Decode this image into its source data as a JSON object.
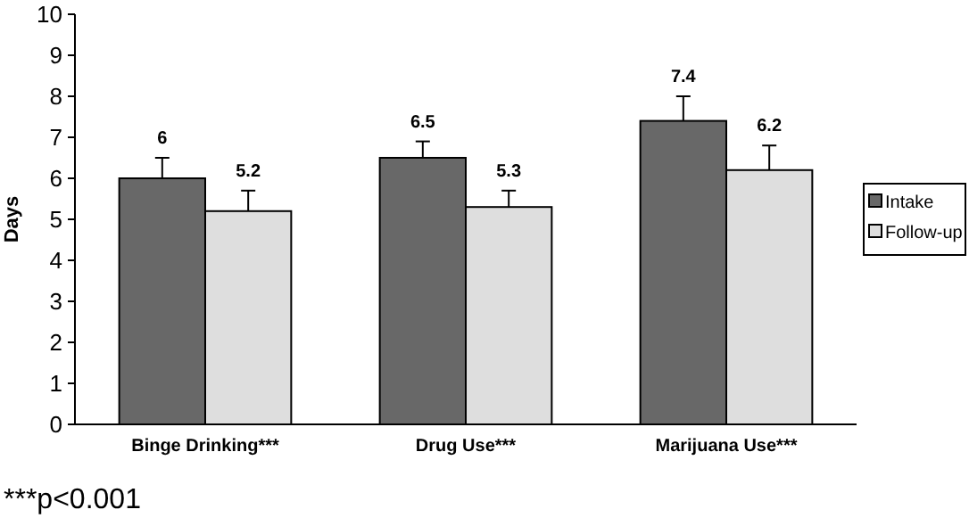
{
  "chart_data": {
    "type": "bar",
    "categories": [
      "Binge Drinking***",
      "Drug Use***",
      "Marijuana Use***"
    ],
    "series": [
      {
        "name": "Intake",
        "color": "#686868",
        "values": [
          6,
          6.5,
          7.4
        ],
        "errors": [
          [
            6,
            6.5
          ],
          [
            6.5,
            6.9
          ],
          [
            7.4,
            8
          ]
        ]
      },
      {
        "name": "Follow-up",
        "color": "#dedede",
        "values": [
          5.2,
          5.3,
          6.2
        ],
        "errors": [
          [
            5.2,
            5.7
          ],
          [
            5.3,
            5.7
          ],
          [
            6.2,
            6.8
          ]
        ]
      }
    ],
    "ylabel": "Days",
    "ylim": [
      0,
      10
    ],
    "yticks": [
      0,
      1,
      2,
      3,
      4,
      5,
      6,
      7,
      8,
      9,
      10
    ],
    "data_labels": true,
    "legend": "right",
    "grid": false,
    "annotations": [
      "***p<0.001"
    ]
  }
}
